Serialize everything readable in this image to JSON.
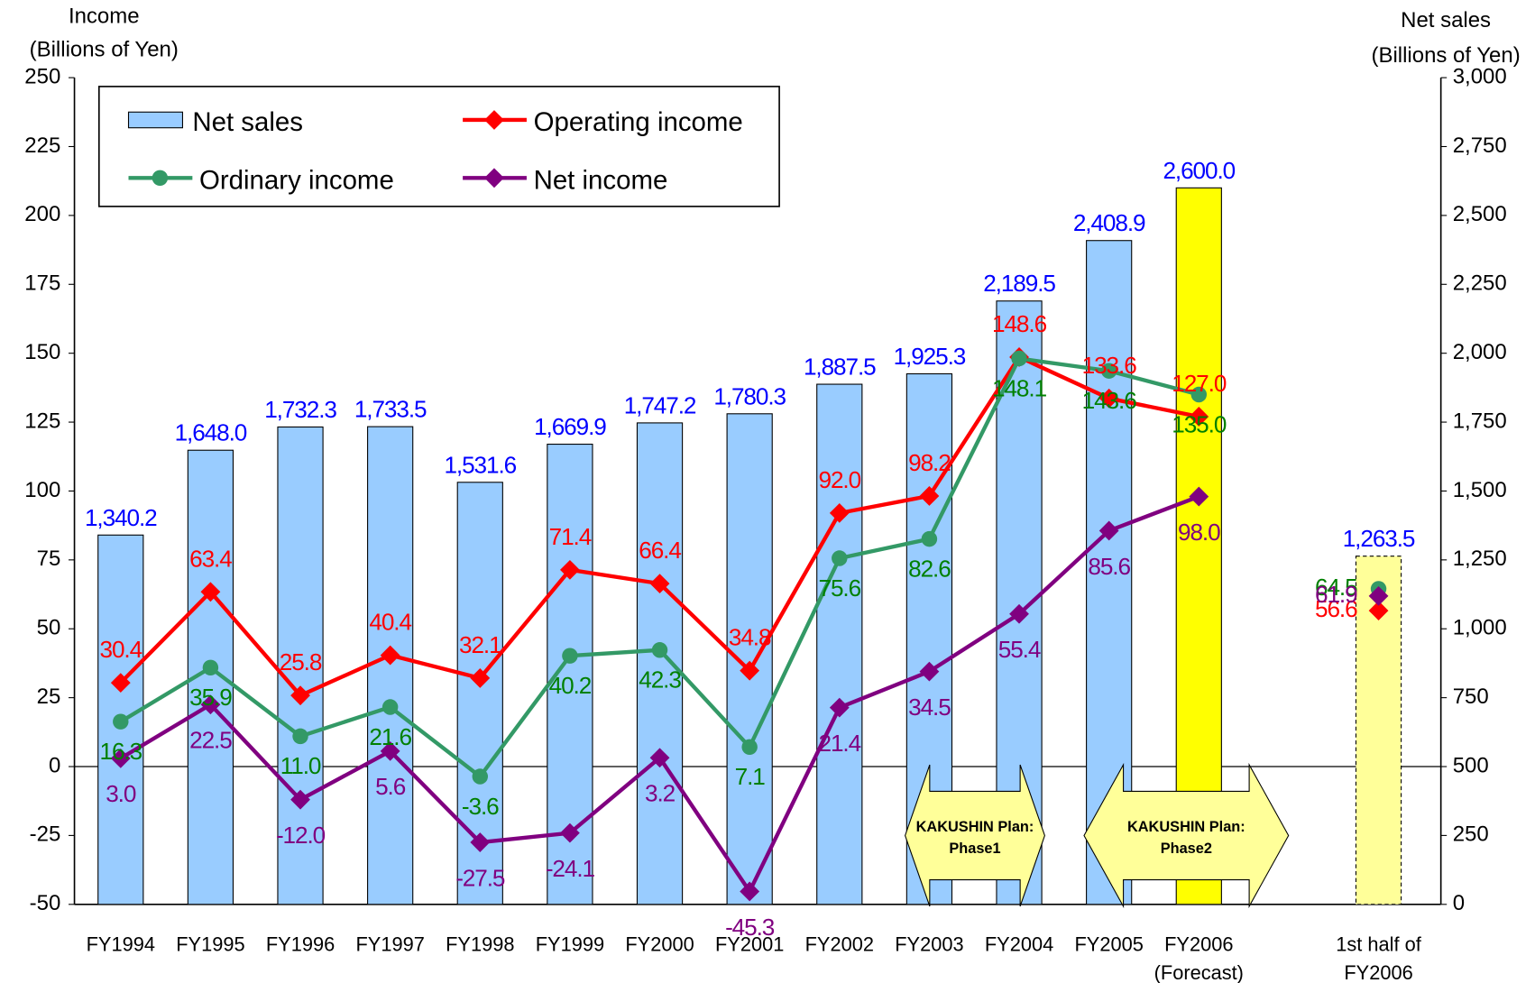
{
  "chart_data": {
    "type": "bar-line",
    "ylabel": "Income\n(Billions of Yen)",
    "y2label": "Net sales\n(Billions of Yen)",
    "categories": [
      "FY1994",
      "FY1995",
      "FY1996",
      "FY1997",
      "FY1998",
      "FY1999",
      "FY2000",
      "FY2001",
      "FY2002",
      "FY2003",
      "FY2004",
      "FY2005",
      "FY2006\n(Forecast)",
      "1st half of\nFY2006"
    ],
    "ylim": [
      -50,
      250
    ],
    "yticks": [
      -50,
      -25,
      0,
      25,
      50,
      75,
      100,
      125,
      150,
      175,
      200,
      225,
      250
    ],
    "y2lim": [
      0,
      3000
    ],
    "y2ticks": [
      0,
      250,
      500,
      750,
      {
        "value": 1000,
        "label": "1,000"
      },
      {
        "value": 1250,
        "label": "1,250"
      },
      {
        "value": 1500,
        "label": "1,500"
      },
      {
        "value": 1750,
        "label": "1,750"
      },
      {
        "value": 2000,
        "label": "2,000"
      },
      {
        "value": 2250,
        "label": "2,250"
      },
      {
        "value": 2500,
        "label": "2,500"
      },
      {
        "value": 2750,
        "label": "2,750"
      },
      {
        "value": 3000,
        "label": "3,000"
      }
    ],
    "series": [
      {
        "name": "Net sales",
        "kind": "bar",
        "axis": "y2",
        "color": "#99ccff",
        "label_color": "#0000ff",
        "colors": [
          "#99ccff",
          "#99ccff",
          "#99ccff",
          "#99ccff",
          "#99ccff",
          "#99ccff",
          "#99ccff",
          "#99ccff",
          "#99ccff",
          "#99ccff",
          "#99ccff",
          "#99ccff",
          "#ffff00",
          "#ffff99"
        ],
        "values": [
          1340.2,
          1648.0,
          1732.3,
          1733.5,
          1531.6,
          1669.9,
          1747.2,
          1780.3,
          1887.5,
          1925.3,
          2189.5,
          2408.9,
          2600.0,
          1263.5
        ],
        "value_labels": [
          "1,340.2",
          "1,648.0",
          "1,732.3",
          "1,733.5",
          "1,531.6",
          "1,669.9",
          "1,747.2",
          "1,780.3",
          "1,887.5",
          "1,925.3",
          "2,189.5",
          "2,408.9",
          "2,600.0",
          "1,263.5"
        ]
      },
      {
        "name": "Operating income",
        "kind": "line",
        "marker": "diamond",
        "color": "#ff0000",
        "label_color": "#ff0000",
        "values": [
          30.4,
          63.4,
          25.8,
          40.4,
          32.1,
          71.4,
          66.4,
          34.8,
          92.0,
          98.2,
          148.6,
          133.6,
          127.0,
          56.6
        ],
        "value_labels": [
          "30.4",
          "63.4",
          "25.8",
          "40.4",
          "32.1",
          "71.4",
          "66.4",
          "34.8",
          "92.0",
          "98.2",
          "148.6",
          "133.6",
          "127.0",
          "56.6"
        ]
      },
      {
        "name": "Ordinary income",
        "kind": "line",
        "marker": "circle",
        "color": "#339966",
        "label_color": "#008000",
        "values": [
          16.3,
          35.9,
          11.0,
          21.6,
          -3.6,
          40.2,
          42.3,
          7.1,
          75.6,
          82.6,
          148.1,
          143.6,
          135.0,
          64.5
        ],
        "value_labels": [
          "16.3",
          "35.9",
          "11.0",
          "21.6",
          "-3.6",
          "40.2",
          "42.3",
          "7.1",
          "75.6",
          "82.6",
          "148.1",
          "143.6",
          "135.0",
          "64.5"
        ]
      },
      {
        "name": "Net income",
        "kind": "line",
        "marker": "diamond",
        "color": "#800080",
        "label_color": "#800080",
        "values": [
          3.0,
          22.5,
          -12.0,
          5.6,
          -27.5,
          -24.1,
          3.2,
          -45.3,
          21.4,
          34.5,
          55.4,
          85.6,
          98.0,
          61.9
        ],
        "value_labels": [
          "3.0",
          "22.5",
          "-12.0",
          "5.6",
          "-27.5",
          "-24.1",
          "3.2",
          "-45.3",
          "21.4",
          "34.5",
          "55.4",
          "85.6",
          "98.0",
          "61.9"
        ]
      }
    ],
    "annotations": [
      {
        "text": [
          "KAKUSHIN Plan:",
          "Phase1"
        ]
      },
      {
        "text": [
          "KAKUSHIN Plan:",
          "Phase2"
        ]
      }
    ]
  }
}
